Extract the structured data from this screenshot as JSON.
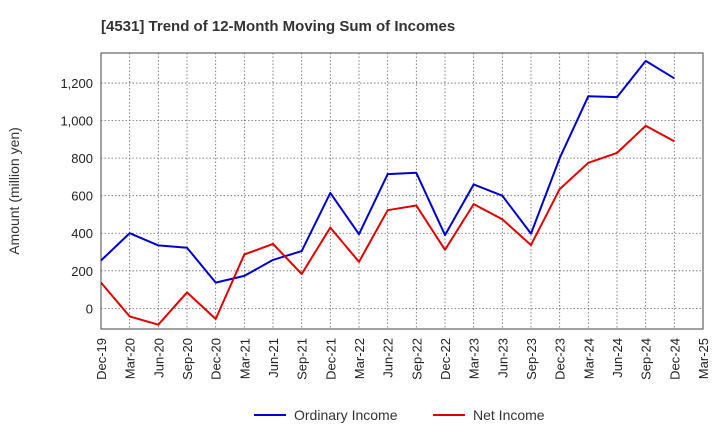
{
  "chart_data": {
    "type": "line",
    "title": "[4531]  Trend of 12-Month Moving Sum of Incomes",
    "xlabel": "",
    "ylabel": "Amount (million yen)",
    "ylim": [
      -110,
      1360
    ],
    "yticks": [
      0,
      200,
      400,
      600,
      800,
      1000,
      1200
    ],
    "ytick_labels": [
      "0",
      "200",
      "400",
      "600",
      "800",
      "1,000",
      "1,200"
    ],
    "grid": true,
    "legend_position": "bottom-center",
    "categories": [
      "Dec-19",
      "Mar-20",
      "Jun-20",
      "Sep-20",
      "Dec-20",
      "Mar-21",
      "Jun-21",
      "Sep-21",
      "Dec-21",
      "Mar-22",
      "Jun-22",
      "Sep-22",
      "Dec-22",
      "Mar-23",
      "Jun-23",
      "Sep-23",
      "Dec-23",
      "Mar-24",
      "Jun-24",
      "Sep-24",
      "Dec-24",
      "Mar-25"
    ],
    "series": [
      {
        "name": "Ordinary Income",
        "color": "#0000cc",
        "values": [
          255,
          400,
          335,
          323,
          137,
          173,
          258,
          305,
          615,
          395,
          715,
          722,
          390,
          660,
          600,
          398,
          800,
          1130,
          1125,
          1318,
          1225,
          null
        ]
      },
      {
        "name": "Net Income",
        "color": "#dd0000",
        "values": [
          137,
          -43,
          -87,
          85,
          -57,
          287,
          343,
          183,
          430,
          248,
          523,
          548,
          312,
          555,
          475,
          337,
          635,
          775,
          828,
          972,
          890,
          null
        ]
      }
    ]
  }
}
